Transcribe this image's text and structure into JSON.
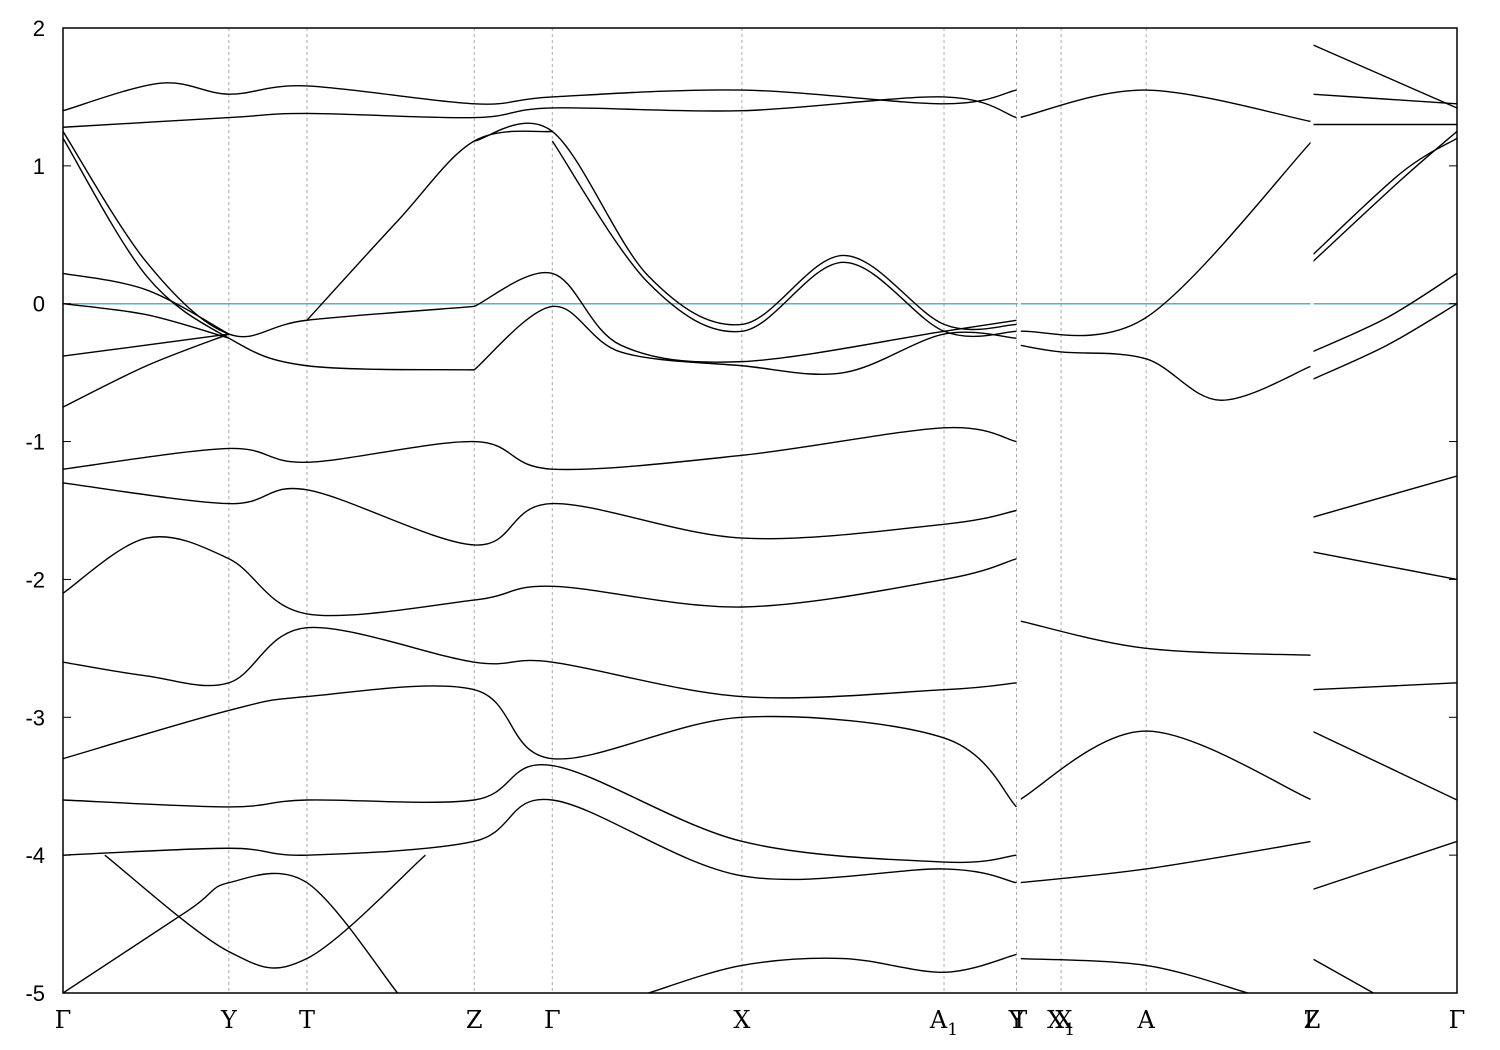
{
  "chart_data": {
    "type": "line",
    "title": "",
    "xlabel": "",
    "ylabel": "",
    "ylim": [
      -5,
      2
    ],
    "yticks": [
      -5,
      -4,
      -3,
      -2,
      -1,
      0,
      1,
      2
    ],
    "ytick_labels": [
      "-5",
      "-4",
      "-3",
      "-2",
      "-1",
      "0",
      "1",
      "2"
    ],
    "xlim": [
      0,
      10.0
    ],
    "kpoints": [
      {
        "label": "Γ",
        "x": 0.0
      },
      {
        "label": "Y",
        "x": 1.19
      },
      {
        "label": "T",
        "x": 1.75
      },
      {
        "label": "Z",
        "x": 2.95
      },
      {
        "label": "Γ",
        "x": 3.51
      },
      {
        "label": "X",
        "x": 4.87
      },
      {
        "label": "A",
        "sub": "1",
        "x": 6.32
      },
      {
        "label": "Y",
        "x": 6.84
      },
      {
        "label": "T",
        "x": 6.86
      },
      {
        "label": "X",
        "sub": "1",
        "x": 7.16
      },
      {
        "label": "X",
        "x": 7.18
      },
      {
        "label": "A",
        "x": 7.77
      },
      {
        "label": "Z",
        "x": 8.96
      },
      {
        "label": "L",
        "x": 8.96
      },
      {
        "label": "Γ",
        "x": 10.0
      }
    ],
    "vertical_lines": [
      1.19,
      1.75,
      2.95,
      3.51,
      4.87,
      6.32,
      6.84,
      7.16,
      7.77
    ],
    "discontinuities": [
      6.86,
      8.96
    ],
    "fermi_level": 0,
    "grid": false,
    "colors": {
      "bands": "#000000",
      "fermi": "#5aaed0",
      "vgrid": "#aaaaaa"
    },
    "series": [
      {
        "x": [
          0,
          0.6,
          1.19,
          1.75,
          2.95
        ],
        "y": [
          1.25,
          0.3,
          -0.22,
          -0.12,
          -0.02
        ]
      },
      {
        "x": [
          0,
          0.6,
          1.19,
          1.75,
          2.95
        ],
        "y": [
          1.2,
          0.2,
          -0.25,
          -0.45,
          -0.48
        ]
      },
      {
        "x": [
          0,
          0.6,
          1.19
        ],
        "y": [
          0.22,
          0.1,
          -0.22
        ]
      },
      {
        "x": [
          0,
          0.6,
          1.19
        ],
        "y": [
          0.0,
          -0.08,
          -0.25
        ]
      },
      {
        "x": [
          0,
          0.6,
          1.19
        ],
        "y": [
          -0.38,
          -0.3,
          -0.22
        ]
      },
      {
        "x": [
          0,
          0.6,
          1.19
        ],
        "y": [
          -0.75,
          -0.45,
          -0.22
        ]
      },
      {
        "x": [
          1.75,
          2.4,
          2.95,
          3.51
        ],
        "y": [
          -0.12,
          0.6,
          1.18,
          1.25
        ]
      },
      {
        "x": [
          2.95,
          3.51,
          4.2,
          4.87,
          5.6,
          6.32,
          6.84
        ],
        "y": [
          1.18,
          1.25,
          0.2,
          -0.15,
          0.35,
          -0.15,
          -0.15
        ]
      },
      {
        "x": [
          3.51,
          4.2,
          4.87,
          5.6,
          6.32,
          6.84
        ],
        "y": [
          1.18,
          0.15,
          -0.2,
          0.3,
          -0.2,
          -0.2
        ]
      },
      {
        "x": [
          2.95,
          3.51,
          4.0,
          4.87,
          6.32,
          6.84
        ],
        "y": [
          -0.02,
          0.22,
          -0.3,
          -0.42,
          -0.2,
          -0.12
        ]
      },
      {
        "x": [
          2.95,
          3.51,
          4.0,
          4.87,
          5.6,
          6.32,
          6.84
        ],
        "y": [
          -0.48,
          -0.02,
          -0.35,
          -0.45,
          -0.5,
          -0.22,
          -0.25
        ]
      },
      {
        "x": [
          6.86,
          7.77,
          8.96
        ],
        "y": [
          -0.2,
          -0.1,
          1.18
        ]
      },
      {
        "x": [
          6.86,
          7.16,
          7.77,
          8.3,
          8.96
        ],
        "y": [
          -0.3,
          -0.35,
          -0.4,
          -0.7,
          -0.45
        ]
      },
      {
        "x": [
          8.96,
          9.6,
          10.0
        ],
        "y": [
          0.3,
          0.9,
          1.25
        ]
      },
      {
        "x": [
          8.96,
          9.6,
          10.0
        ],
        "y": [
          0.35,
          0.95,
          1.2
        ]
      },
      {
        "x": [
          8.96,
          9.5,
          10.0
        ],
        "y": [
          -0.35,
          -0.1,
          0.22
        ]
      },
      {
        "x": [
          8.96,
          9.5,
          10.0
        ],
        "y": [
          -0.55,
          -0.3,
          0.0
        ]
      },
      {
        "x": [
          0,
          1.19,
          1.75,
          2.95,
          3.51,
          4.87,
          6.32,
          6.84
        ],
        "y": [
          1.28,
          1.35,
          1.38,
          1.35,
          1.42,
          1.4,
          1.5,
          1.35
        ]
      },
      {
        "x": [
          0,
          0.7,
          1.19,
          1.75,
          2.95,
          3.51,
          4.87,
          6.32,
          6.84
        ],
        "y": [
          1.4,
          1.6,
          1.52,
          1.58,
          1.45,
          1.5,
          1.55,
          1.45,
          1.55
        ]
      },
      {
        "x": [
          6.86,
          7.77,
          8.96
        ],
        "y": [
          1.35,
          1.55,
          1.32
        ]
      },
      {
        "x": [
          8.96,
          10.0
        ],
        "y": [
          1.3,
          1.3
        ]
      },
      {
        "x": [
          8.96,
          10.0
        ],
        "y": [
          1.52,
          1.45
        ]
      },
      {
        "x": [
          8.96,
          10.0
        ],
        "y": [
          1.88,
          1.42
        ]
      },
      {
        "x": [
          0,
          1.19,
          1.75,
          2.95,
          3.51,
          4.87,
          6.32,
          6.84
        ],
        "y": [
          -1.2,
          -1.05,
          -1.15,
          -1.0,
          -1.2,
          -1.1,
          -0.9,
          -1.0
        ]
      },
      {
        "x": [
          0,
          1.19,
          1.75,
          2.95,
          3.51,
          4.87,
          6.32,
          6.84
        ],
        "y": [
          -1.3,
          -1.45,
          -1.35,
          -1.75,
          -1.45,
          -1.7,
          -1.6,
          -1.5
        ]
      },
      {
        "x": [
          0,
          0.6,
          1.19,
          1.75,
          2.95,
          3.51,
          4.87,
          6.32,
          6.84
        ],
        "y": [
          -2.1,
          -1.7,
          -1.85,
          -2.25,
          -2.15,
          -2.05,
          -2.2,
          -2.0,
          -1.85
        ]
      },
      {
        "x": [
          0,
          0.6,
          1.19,
          1.75,
          2.95,
          3.51,
          4.87,
          6.32,
          6.84
        ],
        "y": [
          -2.6,
          -2.7,
          -2.75,
          -2.35,
          -2.6,
          -2.6,
          -2.85,
          -2.8,
          -2.75
        ]
      },
      {
        "x": [
          0,
          1.19,
          1.75,
          2.95,
          3.51,
          4.87,
          6.32,
          6.84
        ],
        "y": [
          -3.3,
          -2.95,
          -2.85,
          -2.8,
          -3.3,
          -3.0,
          -3.15,
          -3.65
        ]
      },
      {
        "x": [
          0,
          1.19,
          1.75,
          2.95,
          3.51,
          4.87,
          6.32,
          6.84
        ],
        "y": [
          -3.6,
          -3.65,
          -3.6,
          -3.6,
          -3.35,
          -3.9,
          -4.05,
          -4.0
        ]
      },
      {
        "x": [
          0,
          1.19,
          1.75,
          2.95,
          3.51,
          4.87,
          6.32,
          6.84
        ],
        "y": [
          -4.0,
          -3.95,
          -4.0,
          -3.9,
          -3.6,
          -4.15,
          -4.1,
          -4.2
        ]
      },
      {
        "x": [
          0,
          0.9,
          1.19,
          1.75,
          2.4
        ],
        "y": [
          -5.0,
          -4.4,
          -4.2,
          -4.2,
          -5.0
        ]
      },
      {
        "x": [
          0.3,
          1.19,
          1.75,
          2.6
        ],
        "y": [
          -4.0,
          -4.7,
          -4.75,
          -4.0
        ]
      },
      {
        "x": [
          4.2,
          4.87,
          5.6,
          6.32,
          6.84
        ],
        "y": [
          -5.0,
          -4.8,
          -4.75,
          -4.85,
          -4.72
        ]
      },
      {
        "x": [
          6.86,
          7.77,
          8.5
        ],
        "y": [
          -4.75,
          -4.8,
          -5.0
        ]
      },
      {
        "x": [
          8.96,
          9.4
        ],
        "y": [
          -4.75,
          -5.0
        ]
      },
      {
        "x": [
          6.86,
          7.77,
          8.96
        ],
        "y": [
          -2.3,
          -2.5,
          -2.55
        ]
      },
      {
        "x": [
          6.86,
          7.77,
          8.96
        ],
        "y": [
          -3.6,
          -3.1,
          -3.6
        ]
      },
      {
        "x": [
          6.86,
          7.77,
          8.96
        ],
        "y": [
          -4.2,
          -4.1,
          -3.9
        ]
      },
      {
        "x": [
          8.96,
          10.0
        ],
        "y": [
          -3.1,
          -3.6
        ]
      },
      {
        "x": [
          8.96,
          10.0
        ],
        "y": [
          -4.25,
          -3.9
        ]
      },
      {
        "x": [
          8.96,
          10.0
        ],
        "y": [
          -2.8,
          -2.75
        ]
      },
      {
        "x": [
          8.96,
          10.0
        ],
        "y": [
          -1.55,
          -1.25
        ]
      },
      {
        "x": [
          8.96,
          10.0
        ],
        "y": [
          -1.8,
          -2.0
        ]
      }
    ]
  }
}
